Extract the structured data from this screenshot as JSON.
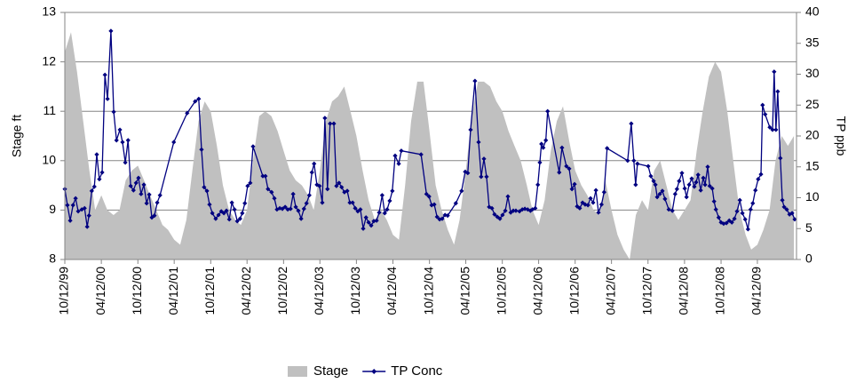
{
  "chart_data": {
    "type": "combo",
    "ylabel": "Stage ft",
    "y2label": "TP ppb",
    "xlim": [
      "1999-10-12",
      "2009-10-25"
    ],
    "xticks": [
      {
        "value": "1999-10-12",
        "label": "10/12/99"
      },
      {
        "value": "2000-04-12",
        "label": "04/12/00"
      },
      {
        "value": "2000-10-12",
        "label": "10/12/00"
      },
      {
        "value": "2001-04-12",
        "label": "04/12/01"
      },
      {
        "value": "2001-10-12",
        "label": "10/12/01"
      },
      {
        "value": "2002-04-12",
        "label": "04/12/02"
      },
      {
        "value": "2002-10-12",
        "label": "10/12/02"
      },
      {
        "value": "2003-04-12",
        "label": "04/12/03"
      },
      {
        "value": "2003-10-12",
        "label": "10/12/03"
      },
      {
        "value": "2004-04-12",
        "label": "04/12/04"
      },
      {
        "value": "2004-10-12",
        "label": "10/12/04"
      },
      {
        "value": "2005-04-12",
        "label": "04/12/05"
      },
      {
        "value": "2005-10-12",
        "label": "10/12/05"
      },
      {
        "value": "2006-04-12",
        "label": "04/12/06"
      },
      {
        "value": "2006-10-12",
        "label": "10/12/06"
      },
      {
        "value": "2007-04-12",
        "label": "04/12/07"
      },
      {
        "value": "2007-10-12",
        "label": "10/12/07"
      },
      {
        "value": "2008-04-12",
        "label": "04/12/08"
      },
      {
        "value": "2008-10-12",
        "label": "10/12/08"
      },
      {
        "value": "2009-04-12",
        "label": "04/12/09"
      }
    ],
    "ylim": [
      8,
      13
    ],
    "yticks": [
      8,
      9,
      10,
      11,
      12,
      13
    ],
    "y2lim": [
      0,
      40
    ],
    "y2ticks": [
      0,
      5,
      10,
      15,
      20,
      25,
      30,
      35,
      40
    ],
    "grid": true,
    "legend": "bottom",
    "series": [
      {
        "name": "Stage",
        "type": "area",
        "color": "#c0c0c0",
        "x": [
          "1999-10-12",
          "1999-11-12",
          "1999-12-12",
          "2000-01-12",
          "2000-02-12",
          "2000-03-12",
          "2000-04-12",
          "2000-05-12",
          "2000-06-12",
          "2000-07-12",
          "2000-08-12",
          "2000-09-12",
          "2000-10-12",
          "2000-11-12",
          "2000-12-12",
          "2001-01-12",
          "2001-02-12",
          "2001-03-12",
          "2001-04-12",
          "2001-05-12",
          "2001-06-12",
          "2001-07-12",
          "2001-08-12",
          "2001-09-12",
          "2001-10-12",
          "2001-11-12",
          "2001-12-12",
          "2002-01-12",
          "2002-02-12",
          "2002-03-12",
          "2002-04-12",
          "2002-05-12",
          "2002-06-12",
          "2002-07-12",
          "2002-08-12",
          "2002-09-12",
          "2002-10-12",
          "2002-11-12",
          "2002-12-12",
          "2003-01-12",
          "2003-02-12",
          "2003-03-12",
          "2003-04-12",
          "2003-05-12",
          "2003-06-12",
          "2003-07-12",
          "2003-08-12",
          "2003-09-12",
          "2003-10-12",
          "2003-11-12",
          "2003-12-12",
          "2004-01-12",
          "2004-02-12",
          "2004-03-12",
          "2004-04-12",
          "2004-05-12",
          "2004-06-12",
          "2004-07-12",
          "2004-08-12",
          "2004-09-12",
          "2004-10-12",
          "2004-11-12",
          "2004-12-12",
          "2005-01-12",
          "2005-02-12",
          "2005-03-12",
          "2005-04-12",
          "2005-05-12",
          "2005-06-12",
          "2005-07-12",
          "2005-08-12",
          "2005-09-12",
          "2005-10-12",
          "2005-11-12",
          "2005-12-12",
          "2006-01-12",
          "2006-02-12",
          "2006-03-12",
          "2006-04-12",
          "2006-05-12",
          "2006-06-12",
          "2006-07-12",
          "2006-08-12",
          "2006-09-12",
          "2006-10-12",
          "2006-11-12",
          "2006-12-12",
          "2007-01-12",
          "2007-02-12",
          "2007-03-12",
          "2007-04-12",
          "2007-05-12",
          "2007-06-12",
          "2007-07-12",
          "2007-08-12",
          "2007-09-12",
          "2007-10-12",
          "2007-11-12",
          "2007-12-12",
          "2008-01-12",
          "2008-02-12",
          "2008-03-12",
          "2008-04-12",
          "2008-05-12",
          "2008-06-12",
          "2008-07-12",
          "2008-08-12",
          "2008-09-12",
          "2008-10-12",
          "2008-11-12",
          "2008-12-12",
          "2009-01-12",
          "2009-02-12",
          "2009-03-12",
          "2009-04-12",
          "2009-05-12",
          "2009-06-12",
          "2009-07-12",
          "2009-08-12",
          "2009-09-12",
          "2009-10-12"
        ],
        "values": [
          12.2,
          12.6,
          11.8,
          10.8,
          9.8,
          9.0,
          9.3,
          9.0,
          8.9,
          9.0,
          9.6,
          9.8,
          9.9,
          9.6,
          9.3,
          9.0,
          8.7,
          8.6,
          8.4,
          8.3,
          8.8,
          9.8,
          10.8,
          11.2,
          11.0,
          10.3,
          9.5,
          9.0,
          8.8,
          8.7,
          9.0,
          10.0,
          10.9,
          11.0,
          10.9,
          10.6,
          10.2,
          9.8,
          9.6,
          9.5,
          9.3,
          9.0,
          9.8,
          10.8,
          11.2,
          11.3,
          11.5,
          11.0,
          10.5,
          9.8,
          9.2,
          8.8,
          9.0,
          8.8,
          8.5,
          8.4,
          9.5,
          10.8,
          11.6,
          11.6,
          10.6,
          9.5,
          9.0,
          8.6,
          8.3,
          8.8,
          9.8,
          10.9,
          11.6,
          11.6,
          11.5,
          11.2,
          11.0,
          10.6,
          10.3,
          10.0,
          9.5,
          9.0,
          8.7,
          9.2,
          10.2,
          10.8,
          11.1,
          10.4,
          9.8,
          9.5,
          9.3,
          9.0,
          8.9,
          9.6,
          9.0,
          8.5,
          8.2,
          8.0,
          8.9,
          9.2,
          9.0,
          9.8,
          10.0,
          9.5,
          9.0,
          8.8,
          9.0,
          9.2,
          10.2,
          11.0,
          11.7,
          12.0,
          11.8,
          11.0,
          10.0,
          9.0,
          8.5,
          8.2,
          8.3,
          8.6,
          9.0,
          10.0,
          10.5,
          10.3,
          10.5
        ]
      },
      {
        "name": "TP Conc",
        "type": "line",
        "axis": "y2",
        "color": "#000080",
        "marker": "diamond",
        "x": [
          "1999-10-12",
          "1999-10-25",
          "1999-11-08",
          "1999-11-22",
          "1999-12-05",
          "1999-12-18",
          "2000-01-05",
          "2000-01-19",
          "2000-02-01",
          "2000-02-10",
          "2000-02-24",
          "2000-03-08",
          "2000-03-20",
          "2000-04-02",
          "2000-04-16",
          "2000-04-30",
          "2000-05-13",
          "2000-05-30",
          "2000-06-13",
          "2000-06-27",
          "2000-07-14",
          "2000-07-27",
          "2000-08-10",
          "2000-08-24",
          "2000-09-06",
          "2000-09-20",
          "2000-10-03",
          "2000-10-15",
          "2000-10-28",
          "2000-11-11",
          "2000-11-25",
          "2000-12-08",
          "2000-12-21",
          "2001-01-03",
          "2001-01-17",
          "2001-01-31",
          "2001-04-10",
          "2001-06-16",
          "2001-07-26",
          "2001-08-13",
          "2001-08-27",
          "2001-09-09",
          "2001-09-23",
          "2001-10-06",
          "2001-10-20",
          "2001-11-06",
          "2001-11-20",
          "2001-12-04",
          "2001-12-17",
          "2001-12-30",
          "2002-01-13",
          "2002-01-26",
          "2002-02-08",
          "2002-02-22",
          "2002-03-08",
          "2002-03-19",
          "2002-04-01",
          "2002-04-15",
          "2002-04-28",
          "2002-05-12",
          "2002-06-30",
          "2002-07-13",
          "2002-07-26",
          "2002-08-13",
          "2002-08-27",
          "2002-09-09",
          "2002-09-23",
          "2002-10-06",
          "2002-10-20",
          "2002-11-02",
          "2002-11-16",
          "2002-11-29",
          "2002-12-12",
          "2002-12-25",
          "2003-01-08",
          "2003-01-22",
          "2003-02-04",
          "2003-02-18",
          "2003-03-03",
          "2003-03-14",
          "2003-03-28",
          "2003-04-10",
          "2003-04-24",
          "2003-05-07",
          "2003-05-20",
          "2003-06-02",
          "2003-06-21",
          "2003-07-04",
          "2003-07-17",
          "2003-07-30",
          "2003-08-13",
          "2003-08-27",
          "2003-09-09",
          "2003-09-23",
          "2003-10-06",
          "2003-10-19",
          "2003-11-01",
          "2003-11-15",
          "2003-11-29",
          "2003-12-12",
          "2003-12-25",
          "2004-01-07",
          "2004-01-21",
          "2004-02-03",
          "2004-02-18",
          "2004-03-02",
          "2004-03-14",
          "2004-03-27",
          "2004-04-09",
          "2004-04-23",
          "2004-05-11",
          "2004-05-24",
          "2004-08-31",
          "2004-09-27",
          "2004-10-10",
          "2004-10-23",
          "2004-11-05",
          "2004-11-19",
          "2004-12-02",
          "2004-12-15",
          "2004-12-29",
          "2005-01-11",
          "2005-02-21",
          "2005-03-22",
          "2005-04-09",
          "2005-04-22",
          "2005-05-06",
          "2005-05-28",
          "2005-06-15",
          "2005-06-28",
          "2005-07-12",
          "2005-07-25",
          "2005-08-07",
          "2005-08-21",
          "2005-09-03",
          "2005-09-17",
          "2005-09-30",
          "2005-10-13",
          "2005-10-27",
          "2005-11-09",
          "2005-11-23",
          "2005-12-06",
          "2005-12-19",
          "2006-01-06",
          "2006-01-20",
          "2006-02-02",
          "2006-02-16",
          "2006-03-02",
          "2006-03-12",
          "2006-03-26",
          "2006-04-08",
          "2006-04-18",
          "2006-04-26",
          "2006-05-05",
          "2006-05-18",
          "2006-05-27",
          "2006-07-24",
          "2006-08-07",
          "2006-08-29",
          "2006-09-12",
          "2006-09-26",
          "2006-10-09",
          "2006-10-22",
          "2006-11-04",
          "2006-11-18",
          "2006-12-01",
          "2006-12-15",
          "2006-12-28",
          "2007-01-10",
          "2007-01-24",
          "2007-02-06",
          "2007-02-21",
          "2007-03-06",
          "2007-03-21",
          "2007-07-02",
          "2007-07-20",
          "2007-08-02",
          "2007-08-11",
          "2007-08-20",
          "2007-10-13",
          "2007-10-26",
          "2007-11-09",
          "2007-11-18",
          "2007-11-27",
          "2007-12-10",
          "2007-12-23",
          "2008-01-05",
          "2008-01-24",
          "2008-02-11",
          "2008-02-25",
          "2008-03-05",
          "2008-03-16",
          "2008-03-30",
          "2008-04-13",
          "2008-04-22",
          "2008-05-05",
          "2008-05-18",
          "2008-05-31",
          "2008-06-09",
          "2008-06-19",
          "2008-07-02",
          "2008-07-15",
          "2008-07-24",
          "2008-08-06",
          "2008-08-16",
          "2008-08-29",
          "2008-09-07",
          "2008-09-16",
          "2008-09-30",
          "2008-10-12",
          "2008-10-25",
          "2008-11-08",
          "2008-11-22",
          "2008-12-05",
          "2008-12-18",
          "2008-12-31",
          "2009-01-14",
          "2009-01-27",
          "2009-02-10",
          "2009-02-24",
          "2009-03-09",
          "2009-03-20",
          "2009-04-02",
          "2009-04-16",
          "2009-04-30",
          "2009-05-08",
          "2009-05-21",
          "2009-06-13",
          "2009-06-27",
          "2009-07-05",
          "2009-07-14",
          "2009-07-23",
          "2009-08-05",
          "2009-08-15",
          "2009-08-24",
          "2009-09-06",
          "2009-09-20",
          "2009-10-03",
          "2009-10-16"
        ],
        "values": [
          11.4,
          8.8,
          6.3,
          8.8,
          9.9,
          7.8,
          8.1,
          8.3,
          5.3,
          7.1,
          11.1,
          11.8,
          17.0,
          13.0,
          14.1,
          29.9,
          26.0,
          37.0,
          23.9,
          19.3,
          21.0,
          19.0,
          15.7,
          19.3,
          11.9,
          11.2,
          12.4,
          13.2,
          10.6,
          12.1,
          9.1,
          10.5,
          6.8,
          7.1,
          9.2,
          10.4,
          19.0,
          23.7,
          25.6,
          26.0,
          17.8,
          11.7,
          11.1,
          8.9,
          7.5,
          6.6,
          7.2,
          7.8,
          7.5,
          7.9,
          6.5,
          9.2,
          8.1,
          6.2,
          6.6,
          7.5,
          9.1,
          11.9,
          12.4,
          18.3,
          13.5,
          13.5,
          11.4,
          10.9,
          9.9,
          8.1,
          8.3,
          8.2,
          8.5,
          8.1,
          8.2,
          10.6,
          8.5,
          7.9,
          6.6,
          8.2,
          9.1,
          10.4,
          14.1,
          15.5,
          12.1,
          11.9,
          9.2,
          22.9,
          11.4,
          22.0,
          22.0,
          11.9,
          12.4,
          11.7,
          10.9,
          11.1,
          9.2,
          9.2,
          8.3,
          7.8,
          8.1,
          5.0,
          6.8,
          6.0,
          5.5,
          6.2,
          6.3,
          7.6,
          10.4,
          7.5,
          8.1,
          9.5,
          11.1,
          16.8,
          15.5,
          17.6,
          17.0,
          10.6,
          10.2,
          8.8,
          8.9,
          6.9,
          6.5,
          6.6,
          7.2,
          7.1,
          9.1,
          11.1,
          14.2,
          14.0,
          21.0,
          28.9,
          19.0,
          13.4,
          16.3,
          13.4,
          8.5,
          8.3,
          7.3,
          6.9,
          6.6,
          7.2,
          7.9,
          10.2,
          7.6,
          7.9,
          7.9,
          7.8,
          8.1,
          8.2,
          8.1,
          7.9,
          8.1,
          8.3,
          12.1,
          15.7,
          18.7,
          18.1,
          19.3,
          24.0,
          14.1,
          18.1,
          15.1,
          14.7,
          11.4,
          12.2,
          8.6,
          8.3,
          9.2,
          8.9,
          8.8,
          9.9,
          9.2,
          11.2,
          7.6,
          8.9,
          10.9,
          18.0,
          16.0,
          22.0,
          16.0,
          12.1,
          15.5,
          15.1,
          13.5,
          12.7,
          12.1,
          10.1,
          10.6,
          11.1,
          9.8,
          8.1,
          7.9,
          10.6,
          11.4,
          12.7,
          14.0,
          11.5,
          10.1,
          12.1,
          13.1,
          11.8,
          12.5,
          13.7,
          11.2,
          13.2,
          12.1,
          15.0,
          11.9,
          11.5,
          9.4,
          8.1,
          6.8,
          6.0,
          5.8,
          5.9,
          6.3,
          6.0,
          6.6,
          7.8,
          9.6,
          7.5,
          6.5,
          4.9,
          8.1,
          9.1,
          11.2,
          13.0,
          13.8,
          25.0,
          23.5,
          21.4,
          21.0,
          30.4,
          21.0,
          27.2,
          16.4,
          9.6,
          8.5,
          8.1,
          7.3,
          7.5,
          6.5
        ]
      }
    ]
  }
}
